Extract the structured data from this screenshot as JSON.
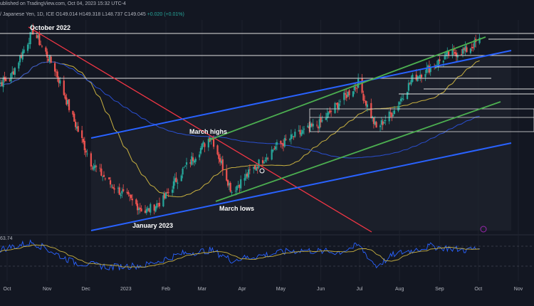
{
  "header": {
    "published": "ublished on TradingView.com, Oct 04, 2023 15:32 UTC-4",
    "symbol": "/ Japanese Yen, 1D, ICE",
    "ohlc": "O149.014  H149.318  L148.737  C149.045",
    "change": "+0.020 (+0.01%)"
  },
  "indicator": {
    "rsi_value": "63.74"
  },
  "colors": {
    "background": "#131722",
    "up": "#26a69a",
    "down": "#ef5350",
    "channel_blue": "#2962ff",
    "channel_green": "#4caf50",
    "downtrend_red": "#f23645",
    "sma_short": "#c8b040",
    "sma_long": "#2a4fd0",
    "horizontal": "#e0e0e0"
  },
  "chart_data": {
    "type": "candlestick",
    "x_ticks": [
      "Oct",
      "Nov",
      "Dec",
      "2023",
      "Feb",
      "Mar",
      "Apr",
      "May",
      "Jun",
      "Jul",
      "Aug",
      "Sep",
      "Oct",
      "Nov"
    ],
    "annotations": [
      "October 2022",
      "March highs",
      "January 2023",
      "March lows"
    ],
    "series": [
      {
        "x": [
          "2022-09-19",
          "2022-10-03",
          "2022-10-21",
          "2022-11-07",
          "2022-11-21",
          "2022-12-05",
          "2022-12-20",
          "2023-01-16",
          "2023-01-30",
          "2023-02-13",
          "2023-03-08",
          "2023-03-24",
          "2023-04-10",
          "2023-04-27",
          "2023-05-15",
          "2023-06-01",
          "2023-06-15",
          "2023-06-30",
          "2023-07-14",
          "2023-07-28",
          "2023-08-11",
          "2023-08-25",
          "2023-09-08",
          "2023-09-22",
          "2023-10-02"
        ],
        "values": [
          143.8,
          144.8,
          150.8,
          146.0,
          139.8,
          134.2,
          131.5,
          128.0,
          129.5,
          133.0,
          137.6,
          130.6,
          133.5,
          136.2,
          137.8,
          139.2,
          141.8,
          144.2,
          138.5,
          140.8,
          144.8,
          146.2,
          147.8,
          148.4,
          149.6
        ]
      }
    ],
    "rsi": {
      "x": [
        "2022-09-19",
        "2022-10-21",
        "2022-11-21",
        "2022-12-20",
        "2023-01-16",
        "2023-02-13",
        "2023-03-08",
        "2023-03-24",
        "2023-04-27",
        "2023-05-15",
        "2023-06-15",
        "2023-06-30",
        "2023-07-14",
        "2023-07-28",
        "2023-08-25",
        "2023-09-22",
        "2023-10-02"
      ],
      "values": [
        60,
        78,
        38,
        28,
        32,
        55,
        62,
        42,
        56,
        62,
        58,
        72,
        30,
        54,
        70,
        62,
        66
      ]
    },
    "grid": true
  }
}
